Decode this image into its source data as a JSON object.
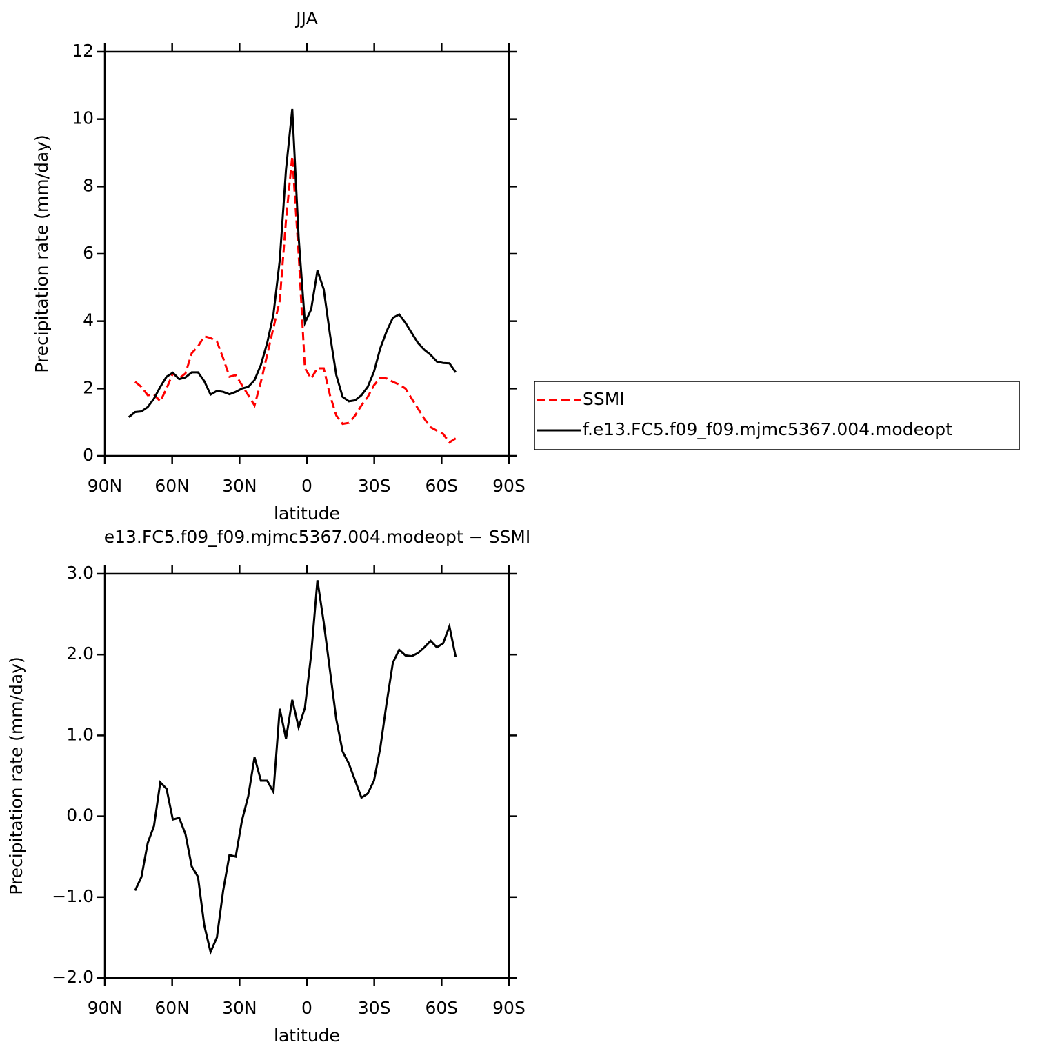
{
  "chart_data": [
    {
      "type": "line",
      "title": "JJA",
      "xlabel": "latitude",
      "ylabel": "Precipitation rate (mm/day)",
      "xlim": [
        90,
        -90
      ],
      "xticks": [
        {
          "value": 90,
          "label": "90N"
        },
        {
          "value": 60,
          "label": "60N"
        },
        {
          "value": 30,
          "label": "30N"
        },
        0,
        {
          "value": -30,
          "label": "30S"
        },
        {
          "value": -60,
          "label": "60S"
        },
        {
          "value": -90,
          "label": "90S"
        }
      ],
      "ylim": [
        0,
        12
      ],
      "yticks": [
        0,
        2,
        4,
        6,
        8,
        10,
        12
      ],
      "legend": "right",
      "x": [
        79.3,
        76.5,
        73.7,
        70.9,
        68.1,
        65.3,
        62.5,
        59.7,
        56.9,
        54.1,
        51.3,
        48.5,
        45.7,
        42.9,
        40.1,
        37.3,
        34.5,
        31.7,
        28.9,
        26.1,
        23.3,
        20.5,
        17.7,
        14.9,
        12.1,
        9.3,
        6.5,
        3.7,
        0.9,
        -1.9,
        -4.7,
        -7.5,
        -10.3,
        -13.1,
        -15.9,
        -18.7,
        -21.5,
        -24.3,
        -27.1,
        -29.9,
        -32.7,
        -35.5,
        -38.3,
        -41.1,
        -43.9,
        -46.7,
        -49.5,
        -52.3,
        -55.1,
        -57.9,
        -60.7,
        -63.5,
        -66.3
      ],
      "series": [
        {
          "name": "SSMI",
          "color": "#ff0000",
          "linestyle": "dashed",
          "values": [
            null,
            2.2,
            2.05,
            1.8,
            1.82,
            1.62,
            2.0,
            2.45,
            2.3,
            2.45,
            3.05,
            3.25,
            3.55,
            3.5,
            3.4,
            2.9,
            2.35,
            2.4,
            2.1,
            1.8,
            1.5,
            2.2,
            3.0,
            3.8,
            4.6,
            7.0,
            8.9,
            6.0,
            2.6,
            2.3,
            2.6,
            2.6,
            1.8,
            1.2,
            0.95,
            0.98,
            1.2,
            1.5,
            1.75,
            2.1,
            2.32,
            2.3,
            2.2,
            2.12,
            2.0,
            1.7,
            1.4,
            1.1,
            0.85,
            0.75,
            0.65,
            0.4,
            0.52
          ]
        },
        {
          "name": "f.e13.FC5.f09_f09.mjmc5367.004.modeopt",
          "color": "#000000",
          "linestyle": "solid",
          "values": [
            1.15,
            1.3,
            1.32,
            1.45,
            1.7,
            2.05,
            2.35,
            2.47,
            2.28,
            2.33,
            2.48,
            2.48,
            2.22,
            1.82,
            1.93,
            1.9,
            1.83,
            1.9,
            2.0,
            2.05,
            2.25,
            2.7,
            3.35,
            4.2,
            5.8,
            8.5,
            10.3,
            6.5,
            3.95,
            4.35,
            5.5,
            4.95,
            3.6,
            2.4,
            1.75,
            1.62,
            1.65,
            1.8,
            2.05,
            2.5,
            3.2,
            3.7,
            4.1,
            4.2,
            3.95,
            3.65,
            3.35,
            3.15,
            3.0,
            2.8,
            2.76,
            2.75,
            2.48
          ]
        }
      ]
    },
    {
      "type": "line",
      "title": "e13.FC5.f09_f09.mjmc5367.004.modeopt − SSMI",
      "xlabel": "latitude",
      "ylabel": "Precipitation rate (mm/day)",
      "xlim": [
        90,
        -90
      ],
      "xticks": [
        {
          "value": 90,
          "label": "90N"
        },
        {
          "value": 60,
          "label": "60N"
        },
        {
          "value": 30,
          "label": "30N"
        },
        0,
        {
          "value": -30,
          "label": "30S"
        },
        {
          "value": -60,
          "label": "60S"
        },
        {
          "value": -90,
          "label": "90S"
        }
      ],
      "ylim": [
        -2,
        3
      ],
      "yticks": [
        {
          "value": -2,
          "label": "−2.0"
        },
        {
          "value": -1,
          "label": "−1.0"
        },
        {
          "value": 0,
          "label": "0.0"
        },
        {
          "value": 1,
          "label": "1.0"
        },
        {
          "value": 2,
          "label": "2.0"
        },
        {
          "value": 3,
          "label": "3.0"
        }
      ],
      "x": [
        79.3,
        76.5,
        73.7,
        70.9,
        68.1,
        65.3,
        62.5,
        59.7,
        56.9,
        54.1,
        51.3,
        48.5,
        45.7,
        42.9,
        40.1,
        37.3,
        34.5,
        31.7,
        28.9,
        26.1,
        23.3,
        20.5,
        17.7,
        14.9,
        12.1,
        9.3,
        6.5,
        3.7,
        0.9,
        -1.9,
        -4.7,
        -7.5,
        -10.3,
        -13.1,
        -15.9,
        -18.7,
        -21.5,
        -24.3,
        -27.1,
        -29.9,
        -32.7,
        -35.5,
        -38.3,
        -41.1,
        -43.9,
        -46.7,
        -49.5,
        -52.3,
        -55.1,
        -57.9,
        -60.7,
        -63.5,
        -66.3
      ],
      "values": [
        null,
        -0.92,
        -0.75,
        -0.33,
        -0.12,
        0.42,
        0.34,
        -0.04,
        -0.02,
        -0.22,
        -0.62,
        -0.75,
        -1.35,
        -1.68,
        -1.5,
        -0.92,
        -0.48,
        -0.5,
        -0.05,
        0.25,
        0.73,
        0.44,
        0.44,
        0.3,
        1.33,
        0.96,
        1.44,
        1.1,
        1.34,
        2.0,
        2.92,
        2.4,
        1.8,
        1.2,
        0.8,
        0.65,
        0.44,
        0.23,
        0.28,
        0.44,
        0.85,
        1.4,
        1.9,
        2.06,
        1.99,
        1.98,
        2.02,
        2.09,
        2.17,
        2.09,
        2.14,
        2.35,
        1.97
      ],
      "color": "#000000",
      "linestyle": "solid"
    }
  ]
}
